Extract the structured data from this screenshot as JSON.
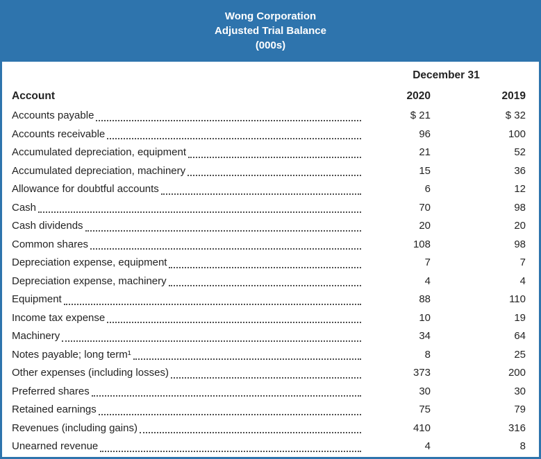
{
  "banner": {
    "line1": "Wong Corporation",
    "line2": "Adjusted Trial Balance",
    "line3": "(000s)"
  },
  "table": {
    "date_header": "December 31",
    "columns": {
      "account": "Account",
      "y2020": "2020",
      "y2019": "2019"
    },
    "rows": [
      {
        "account": "Accounts payable",
        "v2020": "$ 21",
        "v2019": "$ 32"
      },
      {
        "account": "Accounts receivable",
        "v2020": "96",
        "v2019": "100"
      },
      {
        "account": "Accumulated depreciation, equipment",
        "v2020": "21",
        "v2019": "52"
      },
      {
        "account": "Accumulated depreciation, machinery",
        "v2020": "15",
        "v2019": "36"
      },
      {
        "account": "Allowance for doubtful accounts",
        "v2020": "6",
        "v2019": "12"
      },
      {
        "account": "Cash",
        "v2020": "70",
        "v2019": "98"
      },
      {
        "account": "Cash dividends",
        "v2020": "20",
        "v2019": "20"
      },
      {
        "account": "Common shares",
        "v2020": "108",
        "v2019": "98"
      },
      {
        "account": "Depreciation expense, equipment",
        "v2020": "7",
        "v2019": "7"
      },
      {
        "account": "Depreciation expense, machinery",
        "v2020": "4",
        "v2019": "4"
      },
      {
        "account": "Equipment",
        "v2020": "88",
        "v2019": "110"
      },
      {
        "account": "Income tax expense",
        "v2020": "10",
        "v2019": "19"
      },
      {
        "account": "Machinery",
        "v2020": "34",
        "v2019": "64"
      },
      {
        "account": "Notes payable; long term¹",
        "v2020": "8",
        "v2019": "25"
      },
      {
        "account": "Other expenses (including losses)",
        "v2020": "373",
        "v2019": "200"
      },
      {
        "account": "Preferred shares",
        "v2020": "30",
        "v2019": "30"
      },
      {
        "account": "Retained earnings",
        "v2020": "75",
        "v2019": "79"
      },
      {
        "account": "Revenues (including gains)",
        "v2020": "410",
        "v2019": "316"
      },
      {
        "account": "Unearned revenue",
        "v2020": "4",
        "v2019": "8"
      }
    ]
  },
  "colors": {
    "banner_blue": "#2E74AD",
    "border_blue": "#2E74AD",
    "text": "#232323"
  }
}
